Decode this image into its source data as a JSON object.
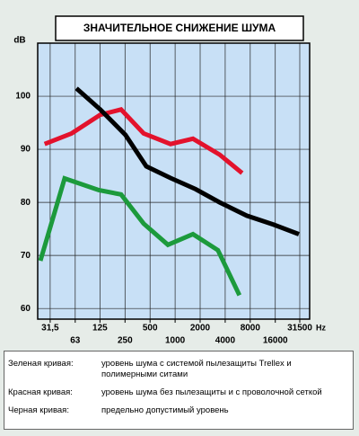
{
  "chart_data": {
    "type": "line",
    "title": "ЗНАЧИТЕЛЬНОЕ СНИЖЕНИЕ ШУМА",
    "ylabel": "dB",
    "xlabel": "Hz",
    "xscale": "log",
    "grid": true,
    "xlim": [
      22.3,
      41400
    ],
    "ylim": [
      58,
      110
    ],
    "xticks": [
      {
        "value": 31.5,
        "label": "31,5"
      },
      63,
      125,
      250,
      500,
      1000,
      2000,
      4000,
      8000,
      16000,
      31500
    ],
    "yticks": [
      60,
      70,
      80,
      90,
      100
    ],
    "series": [
      {
        "name": "Зеленая кривая:",
        "description": "уровень шума с системой пылезащиты Trellex и полимерными ситами",
        "color": "#1c9a3c",
        "x": [
          24,
          47,
          121,
          224,
          418,
          820,
          1640,
          3270,
          5940
        ],
        "values": [
          69,
          84.5,
          82.3,
          81.5,
          76,
          72,
          74,
          71,
          62.5
        ]
      },
      {
        "name": "Красная кривая:",
        "description": "уровень шума без пылезащиты и с проволочной сеткой",
        "color": "#e3122c",
        "x": [
          27,
          57,
          126,
          224,
          418,
          880,
          1640,
          3430,
          6400
        ],
        "values": [
          91,
          93,
          96.5,
          97.5,
          93,
          91,
          92,
          89,
          85.5
        ]
      },
      {
        "name": "Черная кривая:",
        "description": "предельно допустимый уровень",
        "color": "#000000",
        "x": [
          65,
          126,
          253,
          450,
          880,
          1760,
          3430,
          7250,
          15300,
          30700
        ],
        "values": [
          101.5,
          97.5,
          92.7,
          86.8,
          84.6,
          82.5,
          80,
          77.5,
          75.8,
          74
        ]
      }
    ]
  }
}
